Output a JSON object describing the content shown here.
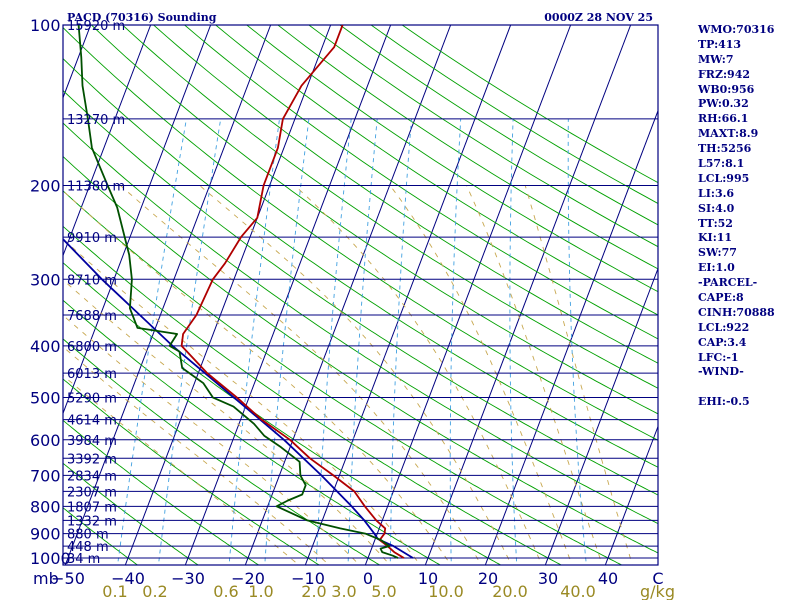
{
  "header": {
    "station": "PACD (70316) Sounding",
    "time": "0000Z 28 NOV 25"
  },
  "indices": [
    "WMO:70316",
    "TP:413",
    "MW:7",
    "FRZ:942",
    "WB0:956",
    "PW:0.32",
    "RH:66.1",
    "MAXT:8.9",
    "TH:5256",
    "L57:8.1",
    "LCL:995",
    "LI:3.6",
    "SI:4.0",
    "TT:52",
    "KI:11",
    "SW:77",
    "EI:1.0",
    "-PARCEL-",
    "CAPE:8",
    "CINH:70888",
    "LCL:922",
    "CAP:3.4",
    "LFC:-1",
    "-WIND-",
    "",
    "EHI:-0.5"
  ],
  "colors": {
    "frame": "#000080",
    "isobar": "#000080",
    "isotherm": "#000080",
    "dry_adiabat": "#00a000",
    "moist_adiabat": "#c8a850",
    "mixing_ratio": "#40a0e0",
    "temperature": "#b00000",
    "dewpoint": "#005000",
    "parcel": "#0000a0"
  },
  "chart_data": {
    "type": "skew-t",
    "title": "PACD (70316) Sounding",
    "valid_time": "0000Z 28 NOV 25",
    "ylabel": "mb",
    "xlabel": "C",
    "ylim": [
      1050,
      100
    ],
    "xlim": [
      -50,
      50
    ],
    "pressure_ticks": [
      100,
      200,
      300,
      400,
      500,
      600,
      700,
      800,
      900,
      1000
    ],
    "pressure_tick_labels": [
      "100",
      "200",
      "300",
      "400",
      "500",
      "600",
      "700",
      "800",
      "900",
      "1000"
    ],
    "temperature_ticks": [
      -50,
      -40,
      -30,
      -20,
      -10,
      0,
      10,
      20,
      30,
      40,
      50
    ],
    "temperature_tick_labels": [
      "−50",
      "−40",
      "−30",
      "−20",
      "−10",
      "0",
      "10",
      "20",
      "30",
      "40",
      "C"
    ],
    "unit_label": "mb",
    "mixing_ratio_label_unit": "g/kg",
    "mixing_ratio_labels": [
      "0.1",
      "0.2",
      "0.6",
      "1.0",
      "2.0",
      "3.0",
      "5.0",
      "10.0",
      "20.0",
      "40.0"
    ],
    "heights": [
      {
        "p": 100,
        "label": "15920 m"
      },
      {
        "p": 150,
        "label": "13270 m"
      },
      {
        "p": 200,
        "label": "11380 m"
      },
      {
        "p": 250,
        "label": "9910 m"
      },
      {
        "p": 300,
        "label": "8710 m"
      },
      {
        "p": 350,
        "label": "7688 m"
      },
      {
        "p": 400,
        "label": "6800 m"
      },
      {
        "p": 450,
        "label": "6013 m"
      },
      {
        "p": 500,
        "label": "5290 m"
      },
      {
        "p": 550,
        "label": "4614 m"
      },
      {
        "p": 600,
        "label": "3984 m"
      },
      {
        "p": 650,
        "label": "3392 m"
      },
      {
        "p": 700,
        "label": "2834 m"
      },
      {
        "p": 750,
        "label": "2307 m"
      },
      {
        "p": 800,
        "label": "1807 m"
      },
      {
        "p": 850,
        "label": "1332 m"
      },
      {
        "p": 900,
        "label": "880 m"
      },
      {
        "p": 950,
        "label": "448 m"
      },
      {
        "p": 1000,
        "label": "34 m"
      }
    ],
    "series": [
      {
        "name": "Temperature",
        "points": [
          [
            1000,
            6
          ],
          [
            990,
            5.2
          ],
          [
            975,
            4.0
          ],
          [
            950,
            2.5
          ],
          [
            925,
            0.8
          ],
          [
            900,
            1.2
          ],
          [
            880,
            1.0
          ],
          [
            850,
            -1.0
          ],
          [
            800,
            -3.8
          ],
          [
            750,
            -6.5
          ],
          [
            700,
            -11.0
          ],
          [
            650,
            -16.0
          ],
          [
            600,
            -20.5
          ],
          [
            550,
            -26.5
          ],
          [
            500,
            -32.0
          ],
          [
            450,
            -38.5
          ],
          [
            400,
            -44.5
          ],
          [
            380,
            -45.0
          ],
          [
            350,
            -44.0
          ],
          [
            300,
            -43.5
          ],
          [
            280,
            -42.5
          ],
          [
            250,
            -41.5
          ],
          [
            230,
            -40.0
          ],
          [
            200,
            -41.0
          ],
          [
            170,
            -41.0
          ],
          [
            150,
            -42.0
          ],
          [
            130,
            -41.0
          ],
          [
            110,
            -38.0
          ],
          [
            100,
            -38.0
          ]
        ]
      },
      {
        "name": "Dewpoint",
        "points": [
          [
            1000,
            5.0
          ],
          [
            990,
            4.0
          ],
          [
            975,
            2.0
          ],
          [
            960,
            1.5
          ],
          [
            950,
            2.8
          ],
          [
            925,
            1.0
          ],
          [
            900,
            -2.0
          ],
          [
            880,
            -6.5
          ],
          [
            850,
            -12.5
          ],
          [
            800,
            -18.5
          ],
          [
            780,
            -17.0
          ],
          [
            760,
            -15.0
          ],
          [
            730,
            -15.0
          ],
          [
            700,
            -16.5
          ],
          [
            660,
            -17.5
          ],
          [
            620,
            -21.5
          ],
          [
            590,
            -25.0
          ],
          [
            560,
            -27.5
          ],
          [
            520,
            -32.0
          ],
          [
            500,
            -36.0
          ],
          [
            470,
            -38.5
          ],
          [
            440,
            -43.0
          ],
          [
            410,
            -44.5
          ],
          [
            400,
            -46.5
          ],
          [
            380,
            -46.0
          ],
          [
            370,
            -53.0
          ],
          [
            340,
            -55.5
          ],
          [
            300,
            -57.0
          ],
          [
            270,
            -59.0
          ],
          [
            220,
            -64.0
          ],
          [
            200,
            -67.0
          ],
          [
            170,
            -72.0
          ],
          [
            150,
            -74.5
          ],
          [
            130,
            -77.5
          ],
          [
            115,
            -79.5
          ],
          [
            100,
            -82.0
          ]
        ]
      },
      {
        "name": "Parcel",
        "points": [
          [
            1000,
            7.5
          ],
          [
            950,
            3.5
          ],
          [
            922,
            0.5
          ],
          [
            900,
            -0.5
          ],
          [
            850,
            -3.0
          ],
          [
            800,
            -6.0
          ],
          [
            700,
            -13.0
          ],
          [
            600,
            -21.5
          ],
          [
            500,
            -32.5
          ],
          [
            400,
            -46.0
          ],
          [
            300,
            -62.0
          ],
          [
            250,
            -71.5
          ],
          [
            200,
            -81.0
          ],
          [
            150,
            -92.0
          ],
          [
            100,
            -107.0
          ]
        ]
      }
    ]
  }
}
